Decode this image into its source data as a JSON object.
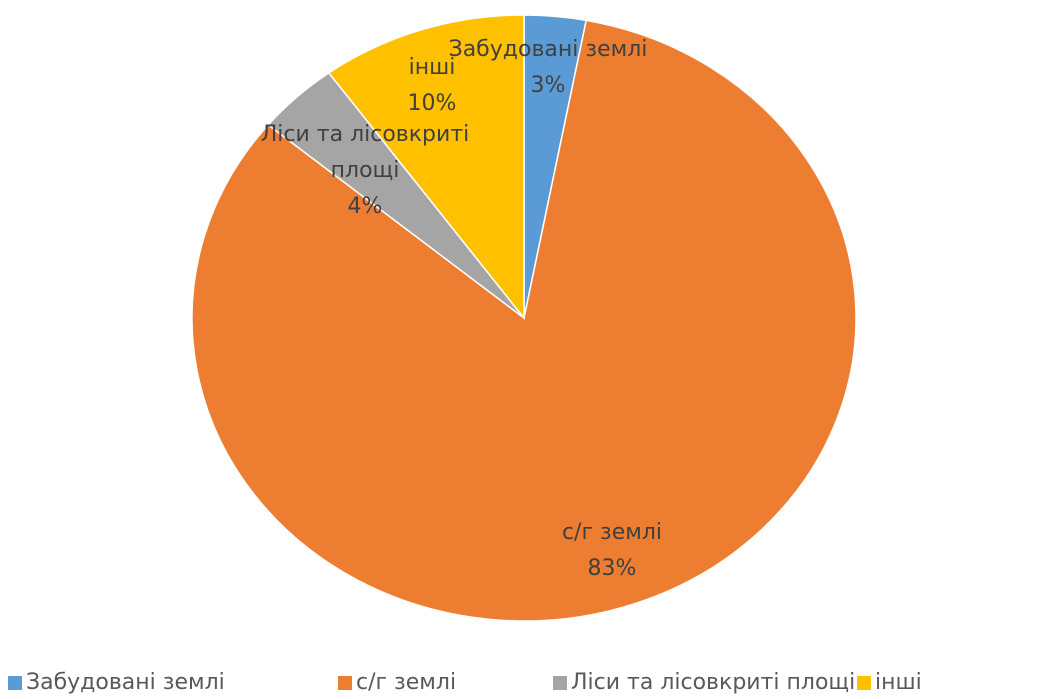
{
  "chart_data": {
    "type": "pie",
    "categories": [
      "Забудовані землі",
      "с/г землі",
      "Ліси та лісовкриті площі",
      "інші"
    ],
    "values": [
      3,
      83,
      4,
      10
    ],
    "value_labels": [
      "3%",
      "83%",
      "4%",
      "10%"
    ],
    "colors": [
      "#5b9bd5",
      "#ed7d31",
      "#a5a5a5",
      "#ffc000"
    ],
    "legend": "bottom"
  }
}
